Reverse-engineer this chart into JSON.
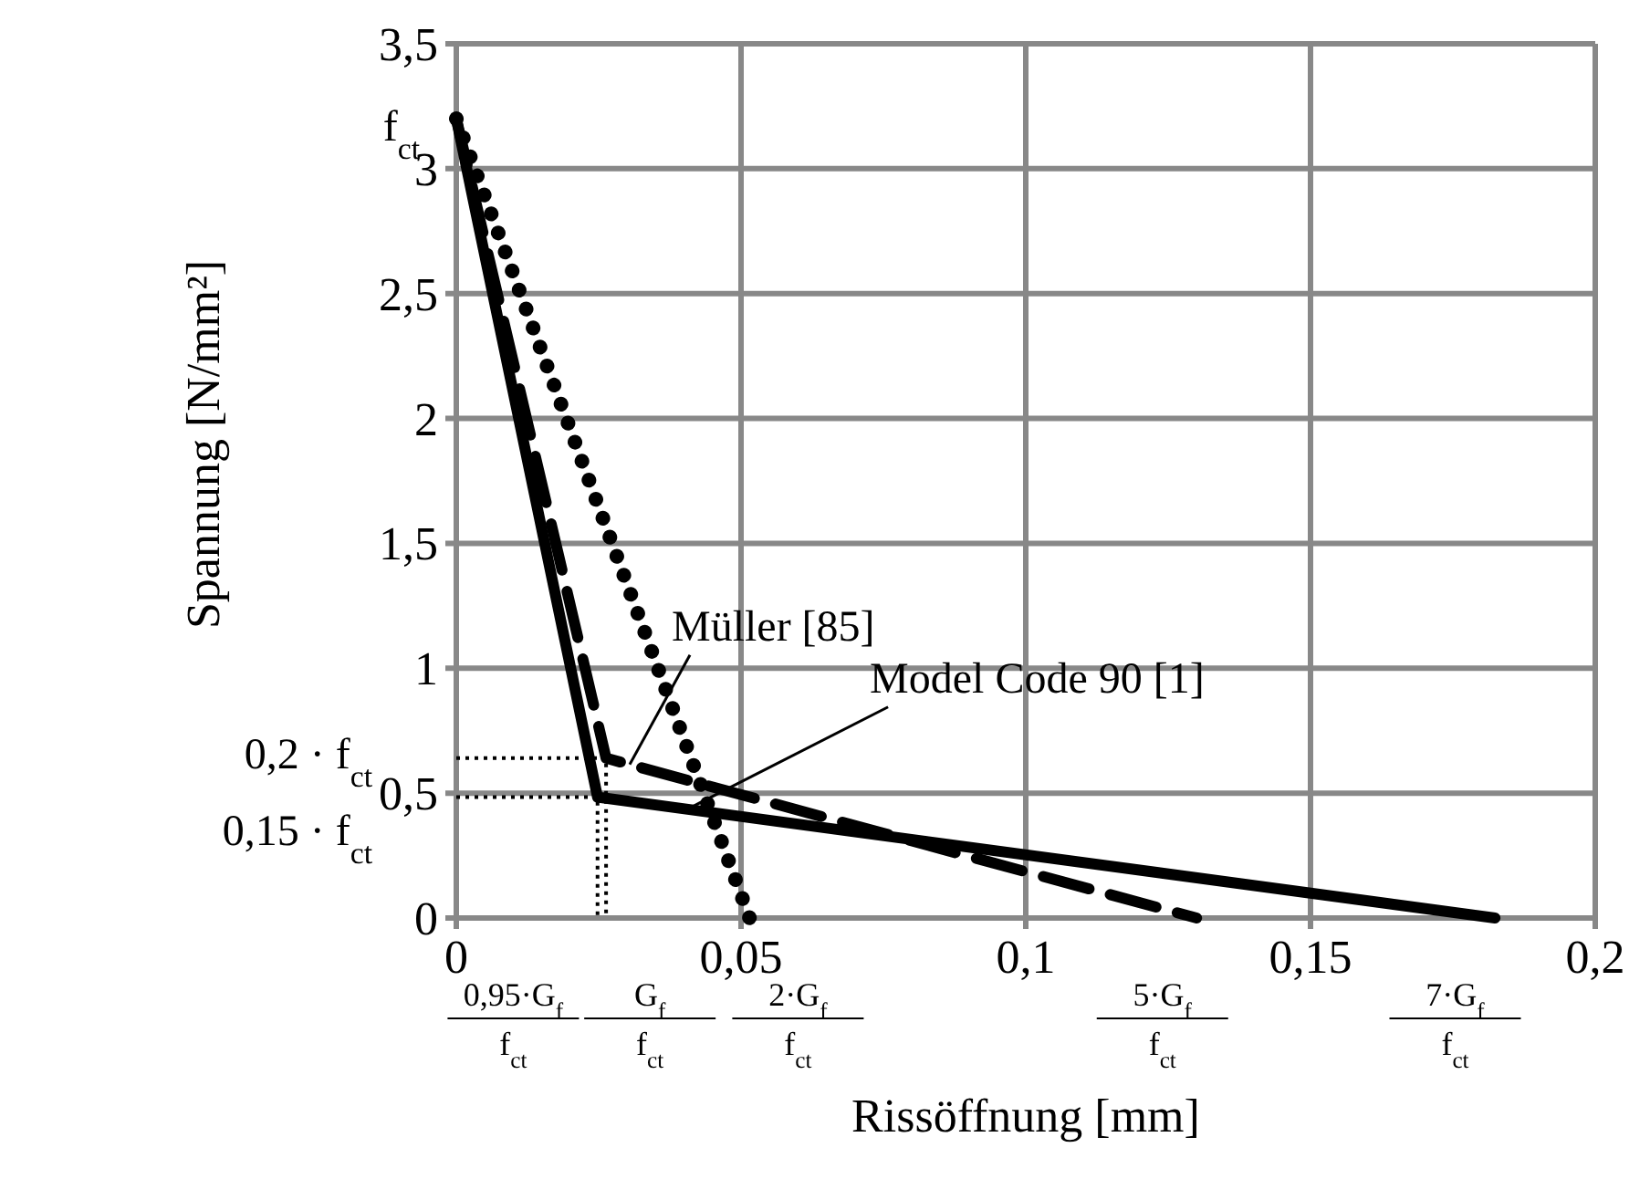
{
  "chart_data": {
    "type": "line",
    "xlabel": "Rissöffnung [mm]",
    "ylabel": "Spannung [N/mm²]",
    "xlim": [
      0,
      0.2
    ],
    "ylim": [
      0,
      3.5
    ],
    "xticks": [
      0,
      {
        "value": 0.05,
        "label": "0,05"
      },
      {
        "value": 0.1,
        "label": "0,1"
      },
      {
        "value": 0.15,
        "label": "0,15"
      },
      {
        "value": 0.2,
        "label": "0,2"
      }
    ],
    "yticks": [
      0,
      {
        "value": 0.5,
        "label": "0,5"
      },
      1,
      {
        "value": 1.5,
        "label": "1,5"
      },
      2,
      {
        "value": 2.5,
        "label": "2,5"
      },
      3,
      {
        "value": 3.5,
        "label": "3,5"
      }
    ],
    "grid": true,
    "series": [
      {
        "name": "Model Code 90 [1]",
        "color": "#000000",
        "line_style": "solid",
        "x": [
          0,
          0.0248,
          0.1824
        ],
        "values": [
          3.2,
          0.484,
          0
        ]
      },
      {
        "name": "Müller [85]",
        "color": "#000000",
        "line_style": "dashed",
        "x": [
          0,
          0.0263,
          0.13
        ],
        "values": [
          3.2,
          0.64,
          0
        ]
      },
      {
        "color": "#000000",
        "line_style": "dotted",
        "x": [
          0,
          0.0515
        ],
        "values": [
          3.2,
          0
        ]
      },
      {
        "color": "#000000",
        "line_style": "dotted",
        "x": [
          0,
          0.0263,
          0.0263
        ],
        "values": [
          0.64,
          0.64,
          0
        ]
      },
      {
        "color": "#000000",
        "line_style": "dotted",
        "x": [
          0,
          0.0248,
          0.0248
        ],
        "values": [
          0.484,
          0.484,
          0
        ]
      }
    ],
    "annotations": [
      "f$_{ct}$",
      "0,2 · f$_{ct}$",
      "0,15 · f$_{ct}$",
      "0,95·G$_{f}$",
      "f$_{ct}$",
      "G$_{f}$",
      "f$_{ct}$",
      "2·G$_{f}$",
      "f$_{ct}$",
      "5·G$_{f}$",
      "f$_{ct}$",
      "7·G$_{f}$",
      "f$_{ct}$"
    ]
  }
}
